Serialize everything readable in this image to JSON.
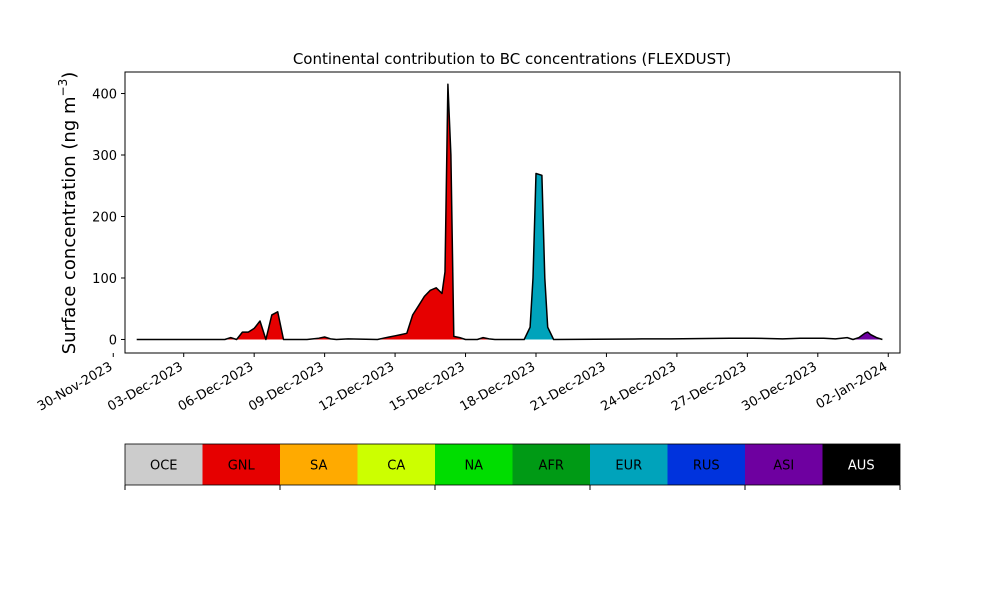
{
  "chart_data": {
    "type": "area",
    "title": "Continental contribution to BC concentrations (FLEXDUST)",
    "ylabel_main": "Surface concentration (ng m",
    "ylabel_exp": "−3",
    "ylabel_close": ")",
    "xlabel": "",
    "xlim": [
      "2023-11-30T12:00",
      "2024-01-02T12:00"
    ],
    "ylim": [
      -22,
      435
    ],
    "yticks": [
      0,
      100,
      200,
      300,
      400
    ],
    "xticks": [
      {
        "date": "2023-11-30",
        "label": "30-Nov-2023"
      },
      {
        "date": "2023-12-03",
        "label": "03-Dec-2023"
      },
      {
        "date": "2023-12-06",
        "label": "06-Dec-2023"
      },
      {
        "date": "2023-12-09",
        "label": "09-Dec-2023"
      },
      {
        "date": "2023-12-12",
        "label": "12-Dec-2023"
      },
      {
        "date": "2023-12-15",
        "label": "15-Dec-2023"
      },
      {
        "date": "2023-12-18",
        "label": "18-Dec-2023"
      },
      {
        "date": "2023-12-21",
        "label": "21-Dec-2023"
      },
      {
        "date": "2023-12-24",
        "label": "24-Dec-2023"
      },
      {
        "date": "2023-12-27",
        "label": "27-Dec-2023"
      },
      {
        "date": "2023-12-30",
        "label": "30-Dec-2023"
      },
      {
        "date": "2024-01-02",
        "label": "02-Jan-2024"
      }
    ],
    "grid": false,
    "series": [
      {
        "name": "GNL",
        "color": "#e60000",
        "points": [
          [
            "2023-12-01T00:00",
            0
          ],
          [
            "2023-12-04T18:00",
            0
          ],
          [
            "2023-12-05T00:00",
            3
          ],
          [
            "2023-12-05T06:00",
            0
          ],
          [
            "2023-12-05T12:00",
            12
          ],
          [
            "2023-12-05T18:00",
            12
          ],
          [
            "2023-12-06T00:00",
            18
          ],
          [
            "2023-12-06T06:00",
            30
          ],
          [
            "2023-12-06T12:00",
            0
          ],
          [
            "2023-12-06T18:00",
            40
          ],
          [
            "2023-12-07T00:00",
            45
          ],
          [
            "2023-12-07T06:00",
            0
          ],
          [
            "2023-12-08T06:00",
            0
          ],
          [
            "2023-12-08T18:00",
            2
          ],
          [
            "2023-12-09T00:00",
            4
          ],
          [
            "2023-12-09T06:00",
            1
          ],
          [
            "2023-12-09T12:00",
            0
          ],
          [
            "2023-12-11T06:00",
            0
          ],
          [
            "2023-12-11T12:00",
            2
          ],
          [
            "2023-12-11T18:00",
            4
          ],
          [
            "2023-12-12T00:00",
            6
          ],
          [
            "2023-12-12T06:00",
            8
          ],
          [
            "2023-12-12T12:00",
            10
          ],
          [
            "2023-12-12T18:00",
            40
          ],
          [
            "2023-12-13T00:00",
            55
          ],
          [
            "2023-12-13T06:00",
            70
          ],
          [
            "2023-12-13T12:00",
            80
          ],
          [
            "2023-12-13T18:00",
            84
          ],
          [
            "2023-12-14T00:00",
            75
          ],
          [
            "2023-12-14T03:00",
            110
          ],
          [
            "2023-12-14T06:00",
            415
          ],
          [
            "2023-12-14T09:00",
            300
          ],
          [
            "2023-12-14T12:00",
            5
          ],
          [
            "2023-12-14T18:00",
            3
          ],
          [
            "2023-12-15T00:00",
            0
          ],
          [
            "2023-12-15T12:00",
            0
          ],
          [
            "2023-12-15T18:00",
            3
          ],
          [
            "2023-12-16T00:00",
            1
          ],
          [
            "2023-12-16T06:00",
            0
          ],
          [
            "2024-01-01T18:00",
            0
          ]
        ]
      },
      {
        "name": "EUR",
        "color": "#00a3bb",
        "points": [
          [
            "2023-12-17T12:00",
            0
          ],
          [
            "2023-12-17T18:00",
            20
          ],
          [
            "2023-12-17T21:00",
            100
          ],
          [
            "2023-12-18T00:00",
            270
          ],
          [
            "2023-12-18T06:00",
            267
          ],
          [
            "2023-12-18T09:00",
            100
          ],
          [
            "2023-12-18T12:00",
            20
          ],
          [
            "2023-12-18T18:00",
            0
          ]
        ]
      },
      {
        "name": "ASI",
        "color": "#6e00a0",
        "points": [
          [
            "2023-12-31T12:00",
            0
          ],
          [
            "2023-12-31T18:00",
            3
          ],
          [
            "2024-01-01T00:00",
            10
          ],
          [
            "2024-01-01T03:00",
            12
          ],
          [
            "2024-01-01T06:00",
            8
          ],
          [
            "2024-01-01T12:00",
            3
          ],
          [
            "2024-01-01T18:00",
            0
          ]
        ]
      }
    ],
    "small_bumps": [
      [
        "2023-12-10T00:00",
        1
      ],
      [
        "2023-12-22T12:00",
        1
      ],
      [
        "2023-12-23T18:00",
        1
      ],
      [
        "2023-12-26T06:00",
        2
      ],
      [
        "2023-12-27T06:00",
        2
      ],
      [
        "2023-12-28T12:00",
        1
      ],
      [
        "2023-12-29T06:00",
        2
      ],
      [
        "2023-12-29T18:00",
        2
      ],
      [
        "2023-12-30T06:00",
        2
      ],
      [
        "2023-12-30T18:00",
        1
      ],
      [
        "2023-12-31T06:00",
        3
      ]
    ],
    "legend": {
      "placement": "bottom",
      "entries": [
        {
          "label": "OCE",
          "color": "#cccccc",
          "text_color": "#000000"
        },
        {
          "label": "GNL",
          "color": "#e60000",
          "text_color": "#000000"
        },
        {
          "label": "SA",
          "color": "#ffaa00",
          "text_color": "#000000"
        },
        {
          "label": "CA",
          "color": "#ccff00",
          "text_color": "#000000"
        },
        {
          "label": "NA",
          "color": "#00dd00",
          "text_color": "#000000"
        },
        {
          "label": "AFR",
          "color": "#009a15",
          "text_color": "#000000"
        },
        {
          "label": "EUR",
          "color": "#00a3bb",
          "text_color": "#000000"
        },
        {
          "label": "RUS",
          "color": "#0033dd",
          "text_color": "#000000"
        },
        {
          "label": "ASI",
          "color": "#6e00a0",
          "text_color": "#000000"
        },
        {
          "label": "AUS",
          "color": "#000000",
          "text_color": "#ffffff"
        }
      ]
    }
  }
}
